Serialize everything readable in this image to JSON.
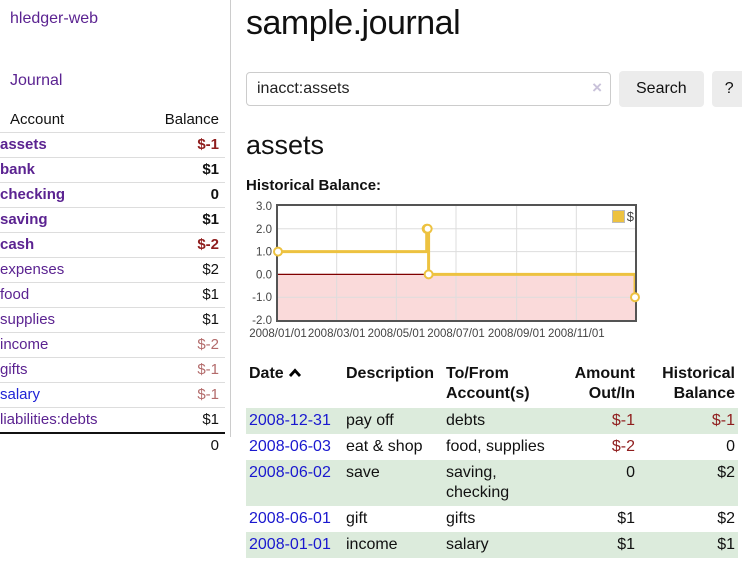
{
  "palette": {
    "purple_link": "#5b2391",
    "blue_link": "#2023d6",
    "negative_red": "#8f1d1d",
    "negative_muted": "#b36b6b",
    "row_stripe_green": "#dcebdc",
    "button_gray": "#ececec",
    "chart_line_gold": "#edc240",
    "chart_zero_line": "#800000",
    "chart_negative_fill": "#fadada",
    "chart_border": "#545454",
    "chart_grid": "#dddddd"
  },
  "sidebar": {
    "brand": "hledger-web",
    "journal_link": "Journal",
    "accounts_table": {
      "headers": {
        "account": "Account",
        "balance": "Balance"
      },
      "rows": [
        {
          "account": "assets",
          "balance": "$-1",
          "depth": 0,
          "emphasis": true,
          "balance_style": "negative"
        },
        {
          "account": "bank",
          "balance": "$1",
          "depth": 1,
          "emphasis": true,
          "balance_style": "normal"
        },
        {
          "account": "checking",
          "balance": "0",
          "depth": 2,
          "emphasis": true,
          "balance_style": "normal"
        },
        {
          "account": "saving",
          "balance": "$1",
          "depth": 2,
          "emphasis": true,
          "balance_style": "normal"
        },
        {
          "account": "cash",
          "balance": "$-2",
          "depth": 1,
          "emphasis": true,
          "balance_style": "negative"
        },
        {
          "account": "expenses",
          "balance": "$2",
          "depth": 0,
          "emphasis": false,
          "balance_style": "normal"
        },
        {
          "account": "food",
          "balance": "$1",
          "depth": 1,
          "emphasis": false,
          "balance_style": "normal"
        },
        {
          "account": "supplies",
          "balance": "$1",
          "depth": 1,
          "emphasis": false,
          "balance_style": "normal"
        },
        {
          "account": "income",
          "balance": "$-2",
          "depth": 0,
          "emphasis": false,
          "balance_style": "negative-muted"
        },
        {
          "account": "gifts",
          "balance": "$-1",
          "depth": 1,
          "emphasis": false,
          "balance_style": "negative-muted"
        },
        {
          "account": "salary",
          "balance": "$-1",
          "depth": 1,
          "emphasis": false,
          "balance_style": "negative-muted",
          "link_state": "unvisited"
        },
        {
          "account": "liabilities:debts",
          "balance": "$1",
          "depth": 0,
          "emphasis": false,
          "balance_style": "normal"
        }
      ],
      "total": "0"
    }
  },
  "header": {
    "title": "sample.journal"
  },
  "search": {
    "value": "inacct:assets",
    "clear_icon": "×",
    "button_label": "Search",
    "help_label": "?"
  },
  "account_page": {
    "title": "assets",
    "chart_heading": "Historical Balance:"
  },
  "chart_data": {
    "type": "line",
    "step": true,
    "title": "Historical Balance",
    "xlim": [
      "2008-01-01",
      "2008-12-31"
    ],
    "ylim": [
      -2.0,
      3.0
    ],
    "grid": true,
    "legend_position": "top-right",
    "legend": {
      "label": "$",
      "swatch_color": "#edc240"
    },
    "series": [
      {
        "name": "$",
        "color": "#edc240",
        "points": [
          [
            "2008-01-01",
            1
          ],
          [
            "2008-06-01",
            2
          ],
          [
            "2008-06-02",
            2
          ],
          [
            "2008-06-03",
            0
          ],
          [
            "2008-12-31",
            -1
          ]
        ]
      }
    ],
    "y_ticks": [
      {
        "v": 3.0,
        "label": "3.0"
      },
      {
        "v": 2.0,
        "label": "2.0"
      },
      {
        "v": 1.0,
        "label": "1.0"
      },
      {
        "v": 0.0,
        "label": "0.0"
      },
      {
        "v": -1.0,
        "label": "-1.0"
      },
      {
        "v": -2.0,
        "label": "-2.0"
      }
    ],
    "x_ticks": [
      {
        "v": "2008-01-01",
        "label": "2008/01/01"
      },
      {
        "v": "2008-03-01",
        "label": "2008/03/01"
      },
      {
        "v": "2008-05-01",
        "label": "2008/05/01"
      },
      {
        "v": "2008-07-01",
        "label": "2008/07/01"
      },
      {
        "v": "2008-09-01",
        "label": "2008/09/01"
      },
      {
        "v": "2008-11-01",
        "label": "2008/11/01"
      }
    ],
    "zero_line_color": "#800000",
    "negative_region_fill": "#fadada"
  },
  "register_table": {
    "headers": {
      "date": "Date",
      "description": "Description",
      "accounts": "To/From Account(s)",
      "amount": "Amount Out/In",
      "balance": "Historical Balance"
    },
    "sort": {
      "column": "date",
      "direction": "ascending"
    },
    "rows": [
      {
        "date": "2008-12-31",
        "description": "pay off",
        "accounts": "debts",
        "amount": "$-1",
        "balance": "$-1",
        "amount_style": "negative",
        "balance_style": "negative"
      },
      {
        "date": "2008-06-03",
        "description": "eat & shop",
        "accounts": "food, supplies",
        "amount": "$-2",
        "balance": "0",
        "amount_style": "negative",
        "balance_style": "normal"
      },
      {
        "date": "2008-06-02",
        "description": "save",
        "accounts": "saving, checking",
        "amount": "0",
        "balance": "$2",
        "amount_style": "normal",
        "balance_style": "normal"
      },
      {
        "date": "2008-06-01",
        "description": "gift",
        "accounts": "gifts",
        "amount": "$1",
        "balance": "$2",
        "amount_style": "normal",
        "balance_style": "normal"
      },
      {
        "date": "2008-01-01",
        "description": "income",
        "accounts": "salary",
        "amount": "$1",
        "balance": "$1",
        "amount_style": "normal",
        "balance_style": "normal"
      }
    ]
  }
}
